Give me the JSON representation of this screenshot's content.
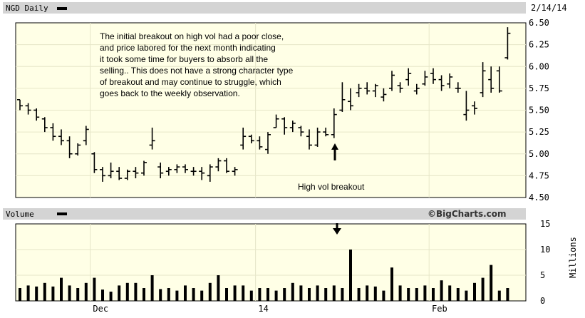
{
  "header": {
    "title": "NGD Daily",
    "date": "2/14/14"
  },
  "volume_header": {
    "title": "Volume",
    "credit": "©BigCharts.com"
  },
  "annotation": {
    "lines": [
      "The initial breakout on high vol had a poor close,",
      "and price labored for the next month indicating",
      "it took some time for buyers to absorb all the",
      "selling..  This does not have a strong character type",
      "of breakout and may continue to struggle, which",
      "goes back to the weekly observation."
    ],
    "breakout_label": "High vol breakout"
  },
  "colors": {
    "panel_bg": "#ffffe6",
    "header_bg": "#d4d4d4",
    "grid": "#e6e6c8",
    "bars": "#000000"
  },
  "chart_data": [
    {
      "type": "ohlc",
      "title": "NGD Daily",
      "y_ticks": [
        "4.50",
        "4.75",
        "5.00",
        "5.25",
        "5.50",
        "5.75",
        "6.00",
        "6.25",
        "6.50"
      ],
      "ylim": [
        4.5,
        6.5
      ],
      "x_labels": [
        {
          "label": "Dec",
          "index": 9
        },
        {
          "label": "14",
          "index": 29
        },
        {
          "label": "Feb",
          "index": 50
        }
      ],
      "ohlc": [
        [
          5.62,
          5.62,
          5.5,
          5.55
        ],
        [
          5.55,
          5.58,
          5.45,
          5.5
        ],
        [
          5.5,
          5.52,
          5.38,
          5.42
        ],
        [
          5.4,
          5.42,
          5.25,
          5.3
        ],
        [
          5.3,
          5.35,
          5.15,
          5.2
        ],
        [
          5.2,
          5.28,
          5.1,
          5.15
        ],
        [
          5.15,
          5.2,
          4.95,
          5.0
        ],
        [
          5.0,
          5.12,
          4.98,
          5.1
        ],
        [
          5.15,
          5.32,
          5.1,
          5.28
        ],
        [
          5.0,
          5.02,
          4.78,
          4.82
        ],
        [
          4.82,
          4.85,
          4.68,
          4.75
        ],
        [
          4.75,
          4.9,
          4.72,
          4.8
        ],
        [
          4.8,
          4.85,
          4.7,
          4.72
        ],
        [
          4.72,
          4.82,
          4.7,
          4.8
        ],
        [
          4.8,
          4.85,
          4.72,
          4.78
        ],
        [
          4.78,
          4.92,
          4.75,
          4.9
        ],
        [
          5.1,
          5.3,
          5.05,
          5.15
        ],
        [
          4.85,
          4.9,
          4.72,
          4.78
        ],
        [
          4.8,
          4.85,
          4.75,
          4.82
        ],
        [
          4.82,
          4.88,
          4.78,
          4.85
        ],
        [
          4.85,
          4.88,
          4.78,
          4.82
        ],
        [
          4.8,
          4.85,
          4.75,
          4.8
        ],
        [
          4.8,
          4.85,
          4.7,
          4.78
        ],
        [
          4.75,
          4.88,
          4.68,
          4.85
        ],
        [
          4.85,
          4.95,
          4.8,
          4.92
        ],
        [
          4.92,
          4.95,
          4.78,
          4.8
        ],
        [
          4.8,
          4.85,
          4.75,
          4.82
        ],
        [
          5.1,
          5.3,
          5.05,
          5.2
        ],
        [
          5.2,
          5.22,
          5.12,
          5.15
        ],
        [
          5.15,
          5.2,
          5.05,
          5.08
        ],
        [
          5.05,
          5.25,
          5.0,
          5.22
        ],
        [
          5.3,
          5.45,
          5.3,
          5.4
        ],
        [
          5.4,
          5.42,
          5.22,
          5.3
        ],
        [
          5.3,
          5.38,
          5.25,
          5.35
        ],
        [
          5.3,
          5.32,
          5.2,
          5.25
        ],
        [
          5.2,
          5.28,
          5.05,
          5.1
        ],
        [
          5.1,
          5.3,
          5.08,
          5.25
        ],
        [
          5.25,
          5.3,
          5.2,
          5.22
        ],
        [
          5.22,
          5.52,
          5.18,
          5.45
        ],
        [
          5.5,
          5.82,
          5.48,
          5.62
        ],
        [
          5.6,
          5.75,
          5.5,
          5.55
        ],
        [
          5.7,
          5.8,
          5.65,
          5.75
        ],
        [
          5.75,
          5.82,
          5.68,
          5.72
        ],
        [
          5.72,
          5.8,
          5.65,
          5.78
        ],
        [
          5.65,
          5.75,
          5.6,
          5.68
        ],
        [
          5.75,
          5.95,
          5.72,
          5.9
        ],
        [
          5.78,
          5.82,
          5.7,
          5.75
        ],
        [
          5.85,
          5.98,
          5.78,
          5.92
        ],
        [
          5.72,
          5.8,
          5.68,
          5.75
        ],
        [
          5.8,
          5.95,
          5.78,
          5.88
        ],
        [
          5.92,
          5.98,
          5.8,
          5.85
        ],
        [
          5.85,
          5.9,
          5.72,
          5.78
        ],
        [
          5.8,
          5.92,
          5.75,
          5.88
        ],
        [
          5.75,
          5.82,
          5.7,
          5.75
        ],
        [
          5.45,
          5.72,
          5.38,
          5.5
        ],
        [
          5.55,
          5.6,
          5.45,
          5.52
        ],
        [
          5.7,
          6.05,
          5.65,
          5.95
        ],
        [
          5.85,
          6.0,
          5.7,
          5.75
        ],
        [
          5.95,
          6.0,
          5.7,
          5.72
        ],
        [
          6.1,
          6.45,
          6.08,
          6.38
        ]
      ]
    },
    {
      "type": "bar",
      "title": "Volume",
      "y_ticks": [
        "0",
        "5",
        "10",
        "15"
      ],
      "ylim": [
        0,
        15
      ],
      "ylabel": "Millions",
      "values": [
        2.5,
        3.0,
        2.8,
        3.5,
        2.8,
        4.5,
        3.0,
        2.5,
        3.5,
        4.5,
        2.2,
        1.8,
        3.0,
        3.5,
        3.5,
        2.5,
        5.0,
        2.3,
        2.5,
        2.0,
        3.0,
        2.5,
        2.0,
        3.5,
        5.0,
        2.5,
        3.0,
        3.0,
        2.0,
        2.5,
        2.5,
        2.0,
        2.5,
        3.5,
        3.0,
        2.5,
        3.0,
        2.5,
        3.0,
        2.5,
        10.0,
        2.5,
        3.0,
        2.8,
        2.0,
        6.5,
        3.0,
        2.5,
        2.5,
        3.0,
        2.5,
        4.0,
        3.0,
        2.5,
        2.0,
        3.5,
        4.5,
        7.0,
        2.0,
        2.5
      ]
    }
  ]
}
